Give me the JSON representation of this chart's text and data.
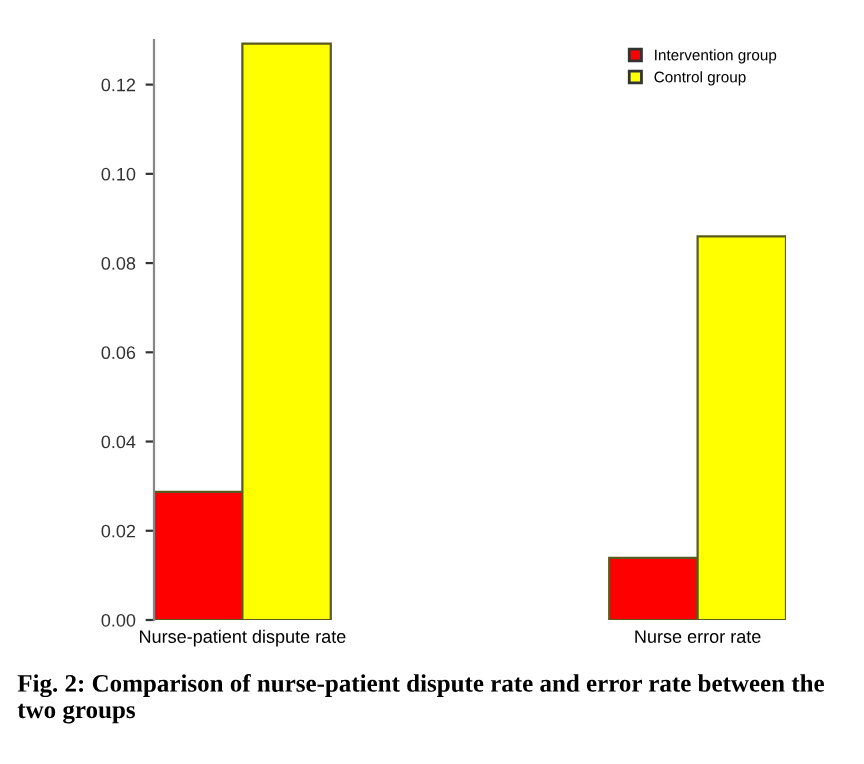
{
  "chart_data": {
    "type": "bar",
    "categories": [
      "Nurse-patient dispute rate",
      "Nurse error rate"
    ],
    "series": [
      {
        "name": "Intervention group",
        "color": "#ff0000",
        "values": [
          0.0287,
          0.0139
        ]
      },
      {
        "name": "Control group",
        "color": "#ffff00",
        "values": [
          0.1292,
          0.086
        ]
      }
    ],
    "ylim": [
      0,
      0.13
    ],
    "yticks": [
      {
        "value": 0,
        "label": "0.00"
      },
      0.02,
      0.04,
      0.06,
      0.08,
      {
        "value": 0.1,
        "label": "0.10"
      },
      0.12
    ],
    "grid": false,
    "legend": "top right",
    "annotations": [
      "Fig. 2: Comparison of nurse-patient dispute rate and error rate between the two groups"
    ]
  }
}
